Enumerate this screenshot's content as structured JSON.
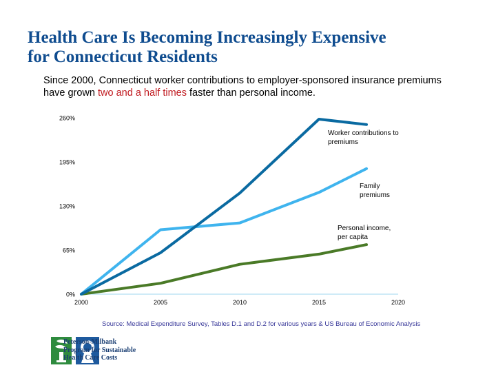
{
  "slide": {
    "title_line1": "Health Care Is Becoming Increasingly Expensive",
    "title_line2": "for Connecticut Residents",
    "subtitle_before": "Since 2000, Connecticut worker contributions to employer-sponsored insurance premiums have grown ",
    "subtitle_highlight": "two and a half times",
    "subtitle_after": " faster than personal income.",
    "source": "Source: Medical Expenditure Survey, Tables D.1 and D.2 for various years & US Bureau of Economic Analysis"
  },
  "logo": {
    "line1": "Peterson-Milbank",
    "line2": "Program for Sustainable",
    "line3": "Health Care Costs"
  },
  "colors": {
    "title": "#0f4c8f",
    "highlight": "#c0191f",
    "worker": "#0a6aa1",
    "family": "#3fb4ee",
    "income": "#4a7a27",
    "xaxis": "#9fd7ef"
  },
  "chart_data": {
    "type": "line",
    "title": "",
    "xlabel": "",
    "ylabel": "",
    "xlim": [
      2000,
      2020
    ],
    "ylim": [
      0,
      260
    ],
    "x_ticks": [
      "2000",
      "2005",
      "2010",
      "2015",
      "2020"
    ],
    "y_ticks": [
      "0%",
      "65%",
      "130%",
      "195%",
      "260%"
    ],
    "grid": false,
    "series": [
      {
        "name": "Worker contributions to premiums",
        "label_lines": [
          "Worker contributions to",
          "premiums"
        ],
        "color_key": "worker",
        "x": [
          2000,
          2005,
          2010,
          2015,
          2018
        ],
        "values": [
          0,
          61,
          149,
          258,
          250
        ]
      },
      {
        "name": "Family premiums",
        "label_lines": [
          "Family",
          "premiums"
        ],
        "color_key": "family",
        "x": [
          2000,
          2005,
          2010,
          2015,
          2018
        ],
        "values": [
          0,
          95,
          105,
          150,
          185
        ]
      },
      {
        "name": "Personal income, per capita",
        "label_lines": [
          "Personal income,",
          "per capita"
        ],
        "color_key": "income",
        "x": [
          2000,
          2005,
          2010,
          2015,
          2018
        ],
        "values": [
          0,
          16,
          44,
          59,
          73
        ]
      }
    ]
  }
}
